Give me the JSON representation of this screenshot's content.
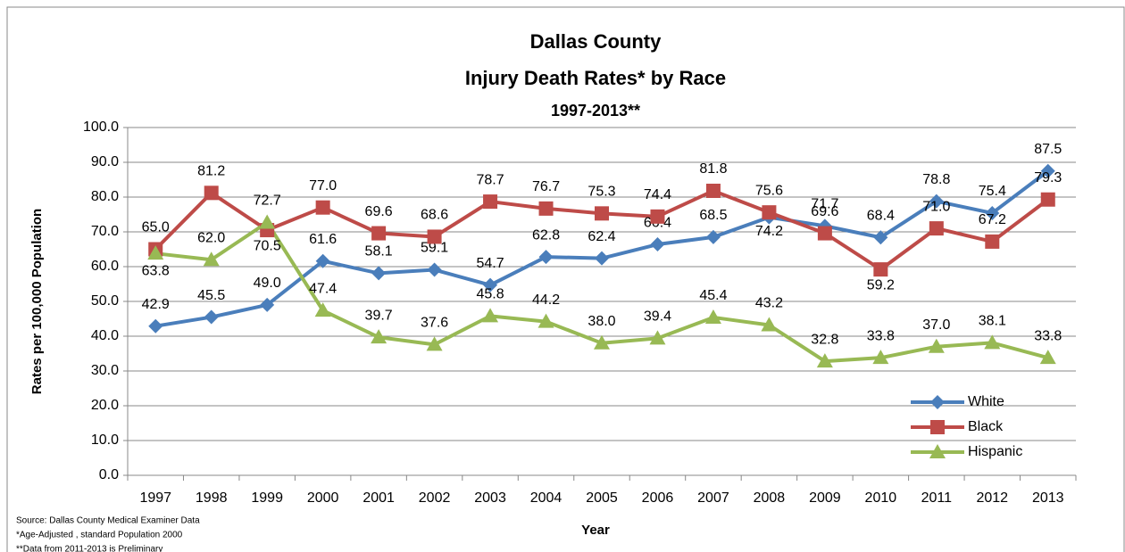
{
  "chart_data": {
    "type": "line",
    "title": [
      "Dallas County",
      "Injury Death Rates* by Race"
    ],
    "subtitle": "1997-2013**",
    "x_label": "Year",
    "y_label": "Rates per 100,000 Population",
    "categories": [
      "1997",
      "1998",
      "1999",
      "2000",
      "2001",
      "2002",
      "2003",
      "2004",
      "2005",
      "2006",
      "2007",
      "2008",
      "2009",
      "2010",
      "2011",
      "2012",
      "2013"
    ],
    "series": [
      {
        "name": "White",
        "color": "#4a7ebb",
        "marker": "diamond",
        "values": [
          42.9,
          45.5,
          49.0,
          61.6,
          58.1,
          59.1,
          54.7,
          62.8,
          62.4,
          66.4,
          68.5,
          74.2,
          71.7,
          68.4,
          78.8,
          75.4,
          87.5
        ],
        "value_labels": [
          "42.9",
          "45.5",
          "49.0",
          "61.6",
          "58.1",
          "59.1",
          "54.7",
          "62.8",
          "62.4",
          "66.4",
          "68.5",
          "74.2",
          "71.7",
          "68.4",
          "78.8",
          "75.4",
          "87.5"
        ]
      },
      {
        "name": "Black",
        "color": "#be4b48",
        "marker": "square",
        "values": [
          65.0,
          81.2,
          70.5,
          77.0,
          69.6,
          68.6,
          78.7,
          76.7,
          75.3,
          74.4,
          81.8,
          75.6,
          69.6,
          59.2,
          71.0,
          67.2,
          79.3
        ],
        "value_labels": [
          "65.0",
          "81.2",
          "70.5",
          "77.0",
          "69.6",
          "68.6",
          "78.7",
          "76.7",
          "75.3",
          "74.4",
          "81.8",
          "75.6",
          "69.6",
          "59.2",
          "71.0",
          "67.2",
          "79.3"
        ]
      },
      {
        "name": "Hispanic",
        "color": "#98b954",
        "marker": "triangle",
        "values": [
          63.8,
          62.0,
          72.7,
          47.4,
          39.7,
          37.6,
          45.8,
          44.2,
          38.0,
          39.4,
          45.4,
          43.2,
          32.8,
          33.8,
          37.0,
          38.1,
          33.8
        ],
        "value_labels": [
          "63.8",
          "62.0",
          "72.7",
          "47.4",
          "39.7",
          "37.6",
          "45.8",
          "44.2",
          "38.0",
          "39.4",
          "45.4",
          "43.2",
          "32.8",
          "33.8",
          "37.0",
          "38.1",
          "33.8"
        ]
      }
    ],
    "ylim": [
      0,
      100
    ],
    "yticks": [
      {
        "value": 0,
        "label": "0.0"
      },
      {
        "value": 10,
        "label": "10.0"
      },
      {
        "value": 20,
        "label": "20.0"
      },
      {
        "value": 30,
        "label": "30.0"
      },
      {
        "value": 40,
        "label": "40.0"
      },
      {
        "value": 50,
        "label": "50.0"
      },
      {
        "value": 60,
        "label": "60.0"
      },
      {
        "value": 70,
        "label": "70.0"
      },
      {
        "value": 80,
        "label": "80.0"
      },
      {
        "value": 90,
        "label": "90.0"
      },
      {
        "value": 100,
        "label": "100.0"
      }
    ],
    "grid": true,
    "legend": "lower right",
    "notes": [
      "Source: Dallas County Medical Examiner Data",
      "*Age-Adjusted , standard Population 2000",
      "**Data from 2011-2013 is Preliminary"
    ]
  }
}
